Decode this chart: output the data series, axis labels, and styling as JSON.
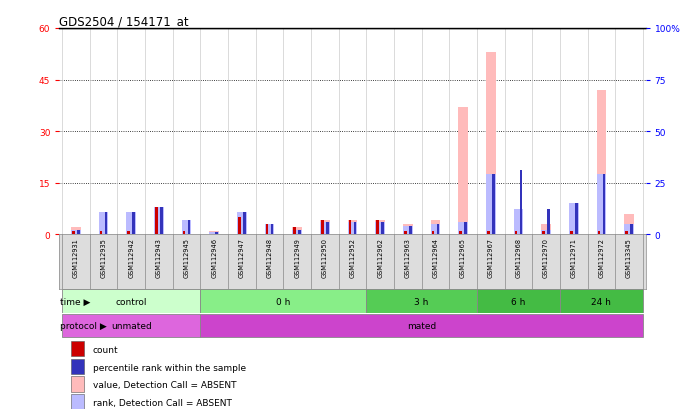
{
  "title": "GDS2504 / 154171_at",
  "samples": [
    "GSM112931",
    "GSM112935",
    "GSM112942",
    "GSM112943",
    "GSM112945",
    "GSM112946",
    "GSM112947",
    "GSM112948",
    "GSM112949",
    "GSM112950",
    "GSM112952",
    "GSM112962",
    "GSM112963",
    "GSM112964",
    "GSM112965",
    "GSM112967",
    "GSM112968",
    "GSM112970",
    "GSM112971",
    "GSM112972",
    "GSM113345"
  ],
  "count_values": [
    1,
    1,
    1,
    8,
    1,
    0,
    5,
    3,
    2,
    4,
    4,
    4,
    1,
    1,
    1,
    1,
    1,
    1,
    1,
    1,
    1
  ],
  "rank_values": [
    2,
    11,
    11,
    13,
    7,
    1,
    11,
    5,
    2,
    6,
    6,
    6,
    4,
    5,
    6,
    29,
    31,
    12,
    15,
    29,
    5
  ],
  "absent_value": [
    2,
    2,
    2,
    2,
    2,
    1,
    5,
    3,
    2,
    4,
    4,
    4,
    3,
    4,
    37,
    53,
    3,
    3,
    3,
    42,
    6
  ],
  "absent_rank": [
    2,
    11,
    11,
    13,
    7,
    1,
    11,
    5,
    2,
    6,
    6,
    6,
    4,
    5,
    6,
    29,
    12,
    2,
    15,
    29,
    5
  ],
  "ylim_left": [
    0,
    60
  ],
  "ylim_right": [
    0,
    100
  ],
  "yticks_left": [
    0,
    15,
    30,
    45,
    60
  ],
  "ytick_labels_left": [
    "0",
    "15",
    "30",
    "45",
    "60"
  ],
  "yticks_right": [
    0,
    25,
    50,
    75,
    100
  ],
  "ytick_labels_right": [
    "0",
    "25",
    "50",
    "75",
    "100%"
  ],
  "grid_lines": [
    15,
    30,
    45
  ],
  "color_count": "#cc0000",
  "color_rank": "#3333bb",
  "color_absent_val": "#ffbbbb",
  "color_absent_rank": "#bbbbff",
  "time_groups": [
    {
      "label": "control",
      "start": 0,
      "end": 5,
      "color": "#ccffcc"
    },
    {
      "label": "0 h",
      "start": 5,
      "end": 11,
      "color": "#88ee88"
    },
    {
      "label": "3 h",
      "start": 11,
      "end": 15,
      "color": "#55cc55"
    },
    {
      "label": "6 h",
      "start": 15,
      "end": 18,
      "color": "#44bb44"
    },
    {
      "label": "24 h",
      "start": 18,
      "end": 21,
      "color": "#44bb44"
    }
  ],
  "protocol_groups": [
    {
      "label": "unmated",
      "start": 0,
      "end": 5,
      "color": "#dd66dd"
    },
    {
      "label": "mated",
      "start": 5,
      "end": 21,
      "color": "#cc44cc"
    }
  ],
  "legend_items": [
    {
      "label": "count",
      "color": "#cc0000"
    },
    {
      "label": "percentile rank within the sample",
      "color": "#3333bb"
    },
    {
      "label": "value, Detection Call = ABSENT",
      "color": "#ffbbbb"
    },
    {
      "label": "rank, Detection Call = ABSENT",
      "color": "#bbbbff"
    }
  ],
  "bg_color": "#ffffff"
}
